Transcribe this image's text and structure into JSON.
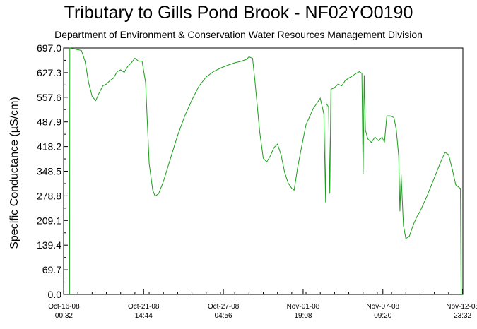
{
  "title": "Tributary to Gills Pond Brook - NF02YO0190",
  "subtitle": "Department of Environment & Conservation Water Resources Management Division",
  "chart_data": {
    "type": "line",
    "title": "Tributary to Gills Pond Brook - NF02YO0190",
    "subtitle": "Department of Environment & Conservation Water Resources Management Division",
    "xlabel": "",
    "ylabel": "Specific Conductance (µS/cm)",
    "ylim": [
      0.0,
      697.0
    ],
    "yticks": [
      "697.0",
      "627.3",
      "557.6",
      "487.9",
      "418.2",
      "348.5",
      "278.8",
      "209.1",
      "139.4",
      "69.7",
      "0.0"
    ],
    "xlim": [
      "2008-10-16 00:00",
      "2008-11-13 00:00"
    ],
    "xticks": [
      {
        "t": "2008-10-16 00:32",
        "line1": "Oct-16-08",
        "line2": "00:32"
      },
      {
        "t": "2008-10-21 14:44",
        "line1": "Oct-21-08",
        "line2": "14:44"
      },
      {
        "t": "2008-10-27 04:56",
        "line1": "Oct-27-08",
        "line2": "04:56"
      },
      {
        "t": "2008-11-01 19:08",
        "line1": "Nov-01-08",
        "line2": "19:08"
      },
      {
        "t": "2008-11-07 09:20",
        "line1": "Nov-07-08",
        "line2": "09:20"
      },
      {
        "t": "2008-11-12 23:32",
        "line1": "Nov-12-08",
        "line2": "23:32"
      }
    ],
    "grid": false,
    "series": [
      {
        "color": "#1a9e1a",
        "points": [
          [
            "2008-10-16 10:00",
            0
          ],
          [
            "2008-10-16 10:30",
            697
          ],
          [
            "2008-10-17 06:00",
            690
          ],
          [
            "2008-10-17 12:00",
            660
          ],
          [
            "2008-10-17 18:00",
            600
          ],
          [
            "2008-10-18 00:00",
            560
          ],
          [
            "2008-10-18 06:00",
            548
          ],
          [
            "2008-10-18 12:00",
            570
          ],
          [
            "2008-10-18 18:00",
            590
          ],
          [
            "2008-10-19 00:00",
            595
          ],
          [
            "2008-10-19 06:00",
            605
          ],
          [
            "2008-10-19 12:00",
            612
          ],
          [
            "2008-10-19 18:00",
            630
          ],
          [
            "2008-10-20 00:00",
            635
          ],
          [
            "2008-10-20 06:00",
            628
          ],
          [
            "2008-10-20 12:00",
            645
          ],
          [
            "2008-10-20 18:00",
            655
          ],
          [
            "2008-10-21 00:00",
            668
          ],
          [
            "2008-10-21 06:00",
            660
          ],
          [
            "2008-10-21 12:00",
            660
          ],
          [
            "2008-10-21 18:00",
            600
          ],
          [
            "2008-10-22 00:00",
            370
          ],
          [
            "2008-10-22 06:00",
            295
          ],
          [
            "2008-10-22 10:00",
            278
          ],
          [
            "2008-10-22 16:00",
            285
          ],
          [
            "2008-10-23 00:00",
            320
          ],
          [
            "2008-10-23 12:00",
            385
          ],
          [
            "2008-10-24 00:00",
            450
          ],
          [
            "2008-10-24 12:00",
            505
          ],
          [
            "2008-10-25 00:00",
            550
          ],
          [
            "2008-10-25 12:00",
            590
          ],
          [
            "2008-10-26 00:00",
            615
          ],
          [
            "2008-10-26 12:00",
            630
          ],
          [
            "2008-10-27 00:00",
            640
          ],
          [
            "2008-10-27 12:00",
            648
          ],
          [
            "2008-10-28 00:00",
            655
          ],
          [
            "2008-10-28 12:00",
            660
          ],
          [
            "2008-10-28 20:00",
            665
          ],
          [
            "2008-10-29 00:00",
            672
          ],
          [
            "2008-10-29 06:00",
            668
          ],
          [
            "2008-10-29 10:00",
            605
          ],
          [
            "2008-10-29 18:00",
            460
          ],
          [
            "2008-10-30 00:00",
            385
          ],
          [
            "2008-10-30 06:00",
            375
          ],
          [
            "2008-10-30 12:00",
            392
          ],
          [
            "2008-10-30 18:00",
            415
          ],
          [
            "2008-10-31 00:00",
            425
          ],
          [
            "2008-10-31 06:00",
            395
          ],
          [
            "2008-10-31 12:00",
            345
          ],
          [
            "2008-10-31 18:00",
            315
          ],
          [
            "2008-11-01 00:00",
            300
          ],
          [
            "2008-11-01 04:00",
            295
          ],
          [
            "2008-11-01 10:00",
            360
          ],
          [
            "2008-11-01 18:00",
            430
          ],
          [
            "2008-11-02 00:00",
            480
          ],
          [
            "2008-11-02 12:00",
            525
          ],
          [
            "2008-11-03 00:00",
            555
          ],
          [
            "2008-11-03 06:00",
            510
          ],
          [
            "2008-11-03 09:00",
            260
          ],
          [
            "2008-11-03 10:00",
            540
          ],
          [
            "2008-11-03 14:00",
            530
          ],
          [
            "2008-11-03 16:00",
            285
          ],
          [
            "2008-11-03 18:00",
            580
          ],
          [
            "2008-11-04 00:00",
            585
          ],
          [
            "2008-11-04 06:00",
            595
          ],
          [
            "2008-11-04 12:00",
            590
          ],
          [
            "2008-11-04 18:00",
            605
          ],
          [
            "2008-11-05 00:00",
            612
          ],
          [
            "2008-11-05 06:00",
            618
          ],
          [
            "2008-11-05 12:00",
            625
          ],
          [
            "2008-11-05 18:00",
            630
          ],
          [
            "2008-11-05 22:00",
            625
          ],
          [
            "2008-11-06 00:00",
            340
          ],
          [
            "2008-11-06 02:00",
            620
          ],
          [
            "2008-11-06 04:00",
            465
          ],
          [
            "2008-11-06 08:00",
            440
          ],
          [
            "2008-11-06 14:00",
            430
          ],
          [
            "2008-11-06 20:00",
            445
          ],
          [
            "2008-11-07 02:00",
            435
          ],
          [
            "2008-11-07 08:00",
            445
          ],
          [
            "2008-11-07 12:00",
            430
          ],
          [
            "2008-11-07 16:00",
            505
          ],
          [
            "2008-11-07 22:00",
            505
          ],
          [
            "2008-11-08 04:00",
            500
          ],
          [
            "2008-11-08 08:00",
            465
          ],
          [
            "2008-11-08 12:00",
            390
          ],
          [
            "2008-11-08 14:00",
            235
          ],
          [
            "2008-11-08 16:00",
            340
          ],
          [
            "2008-11-08 20:00",
            195
          ],
          [
            "2008-11-09 00:00",
            158
          ],
          [
            "2008-11-09 06:00",
            165
          ],
          [
            "2008-11-09 12:00",
            195
          ],
          [
            "2008-11-09 18:00",
            218
          ],
          [
            "2008-11-10 00:00",
            235
          ],
          [
            "2008-11-10 12:00",
            280
          ],
          [
            "2008-11-11 00:00",
            330
          ],
          [
            "2008-11-11 12:00",
            380
          ],
          [
            "2008-11-11 18:00",
            402
          ],
          [
            "2008-11-12 00:00",
            395
          ],
          [
            "2008-11-12 06:00",
            355
          ],
          [
            "2008-11-12 12:00",
            310
          ],
          [
            "2008-11-12 18:00",
            302
          ],
          [
            "2008-11-12 20:00",
            300
          ],
          [
            "2008-11-12 21:00",
            0
          ]
        ]
      }
    ]
  }
}
